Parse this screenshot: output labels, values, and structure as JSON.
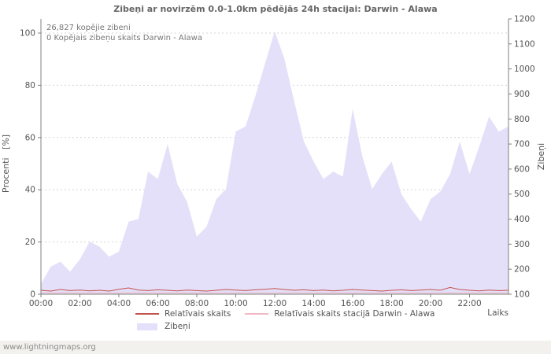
{
  "page": {
    "watermark": "www.lightningmaps.org"
  },
  "annotations": {
    "total": "26,827 kopējie zibeni",
    "station": "0 Kopējais zibeņu skaits Darwin - Alawa"
  },
  "chart_data": {
    "type": "area",
    "title": "Zibeņi ar novirzēm 0.0-1.0km pēdējās 24h stacijai: Darwin - Alawa",
    "xlabel": "Laiks",
    "ylabel_left": "Procenti   [%]",
    "ylabel_right": "Zibeņi",
    "ylim_left": [
      0,
      100
    ],
    "ylim_right": [
      100,
      1200
    ],
    "y_ticks_left": [
      0,
      20,
      40,
      60,
      80,
      100
    ],
    "y_ticks_right": [
      100,
      200,
      300,
      400,
      500,
      600,
      700,
      800,
      900,
      1000,
      1100,
      1200
    ],
    "x_ticks": [
      "00:00",
      "02:00",
      "04:00",
      "06:00",
      "08:00",
      "10:00",
      "12:00",
      "14:00",
      "16:00",
      "18:00",
      "20:00",
      "22:00"
    ],
    "x_hours_span": 24,
    "x_tick_interval_hours": 2,
    "sample_interval_hours": 0.5,
    "grid": "horizontal-dotted",
    "legend_position": "bottom",
    "series": [
      {
        "name": "Zibeņi",
        "type": "area",
        "axis": "right",
        "color": "#e4e0f9",
        "values": [
          140,
          210,
          230,
          190,
          240,
          310,
          290,
          250,
          270,
          390,
          400,
          590,
          560,
          700,
          540,
          470,
          330,
          370,
          480,
          520,
          750,
          770,
          890,
          1020,
          1150,
          1040,
          870,
          710,
          630,
          560,
          590,
          570,
          840,
          650,
          520,
          580,
          630,
          500,
          440,
          390,
          480,
          510,
          580,
          710,
          580,
          690,
          810,
          750,
          770
        ]
      },
      {
        "name": "Relatīvais skaits",
        "type": "line",
        "axis": "left",
        "color": "#c4534e",
        "values": [
          1.5,
          1.2,
          1.8,
          1.4,
          1.6,
          1.3,
          1.5,
          1.2,
          1.9,
          2.4,
          1.6,
          1.4,
          1.7,
          1.5,
          1.3,
          1.6,
          1.4,
          1.2,
          1.5,
          1.8,
          1.6,
          1.4,
          1.7,
          1.9,
          2.2,
          1.8,
          1.5,
          1.7,
          1.4,
          1.6,
          1.3,
          1.5,
          1.8,
          1.6,
          1.4,
          1.2,
          1.5,
          1.7,
          1.4,
          1.6,
          1.8,
          1.5,
          2.6,
          1.8,
          1.5,
          1.3,
          1.6,
          1.4,
          1.5
        ]
      },
      {
        "name": "Relatīvais skaits stacijā Darwin - Alawa",
        "type": "line",
        "axis": "left",
        "color": "#f2b9c4",
        "values": [
          0.5,
          0.5,
          0.5,
          0.5,
          0.5,
          0.5,
          0.5,
          0.5,
          0.5,
          0.5,
          0.5,
          0.5,
          0.5,
          0.5,
          0.5,
          0.5,
          0.5,
          0.5,
          0.5,
          0.5,
          0.5,
          0.5,
          0.5,
          0.5,
          0.5,
          0.5,
          0.5,
          0.5,
          0.5,
          0.5,
          0.5,
          0.5,
          0.5,
          0.5,
          0.5,
          0.5,
          0.5,
          0.5,
          0.5,
          0.5,
          0.5,
          0.5,
          0.5,
          0.5,
          0.5,
          0.5,
          0.5,
          0.5,
          0.5
        ]
      }
    ]
  }
}
